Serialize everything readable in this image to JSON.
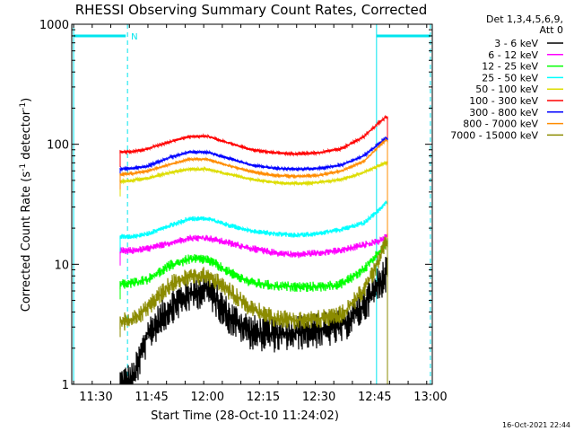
{
  "header": {
    "title": "RHESSI Observing Summary Count Rates, Corrected",
    "detectors": "Det 1,3,4,5,6,9,",
    "attenuator": "Att 0"
  },
  "footer": {
    "timestamp": "16-Oct-2021 22:44"
  },
  "chart_data": {
    "type": "line",
    "title": "RHESSI Observing Summary Count Rates, Corrected",
    "xlabel": "Start Time (28-Oct-10 11:24:02)",
    "ylabel_main": "Corrected Count Rate (s",
    "ylabel_sup1": "-1",
    "ylabel_mid": " detector",
    "ylabel_sup2": "-1",
    "ylabel_end": ")",
    "ylog": true,
    "ylim": [
      1,
      1000
    ],
    "xlim_minutes": [
      -0.5,
      96.5
    ],
    "x_ticks": [
      {
        "label": "11:30",
        "t": 6
      },
      {
        "label": "11:45",
        "t": 21
      },
      {
        "label": "12:00",
        "t": 36
      },
      {
        "label": "12:15",
        "t": 51
      },
      {
        "label": "12:30",
        "t": 66
      },
      {
        "label": "12:45",
        "t": 81
      },
      {
        "label": "13:00",
        "t": 96
      }
    ],
    "y_ticks": [
      {
        "label": "1",
        "v": 1
      },
      {
        "label": "10",
        "v": 10
      },
      {
        "label": "100",
        "v": 100
      },
      {
        "label": "1000",
        "v": 1000
      }
    ],
    "night_marker": {
      "label": "N",
      "t": 14.5,
      "level": 800
    },
    "day_lines": [
      {
        "t": 0,
        "color": "#00e5ee"
      },
      {
        "t": 81.5,
        "color": "#00e5ee"
      }
    ],
    "dashed_lines": [
      {
        "t": 14.5,
        "color": "#00e5ee"
      },
      {
        "t": 96,
        "color": "#00e5ee"
      }
    ],
    "data_start": 12.5,
    "data_end": 84.5,
    "series": [
      {
        "name": "3 - 6 keV",
        "color": "#000000",
        "noise": 0.35,
        "t": [
          12.5,
          16,
          20,
          26,
          31,
          36,
          42,
          48,
          54,
          60,
          66,
          72,
          78,
          82,
          84
        ],
        "v": [
          1.0,
          1.1,
          2.6,
          4.4,
          5.6,
          6.3,
          3.6,
          2.7,
          2.6,
          2.7,
          2.8,
          3.0,
          4.5,
          6.8,
          8.2
        ]
      },
      {
        "name": "6 - 12 keV",
        "color": "#ff00ff",
        "noise": 0.07,
        "t": [
          12.5,
          16,
          20,
          26,
          31,
          36,
          42,
          48,
          54,
          60,
          66,
          72,
          78,
          82,
          84
        ],
        "v": [
          13,
          13,
          13.5,
          15,
          16.5,
          16.5,
          15,
          13.5,
          12.5,
          12,
          12.5,
          13,
          14.5,
          15.5,
          17
        ]
      },
      {
        "name": "12 - 25 keV",
        "color": "#00ff00",
        "noise": 0.1,
        "t": [
          12.5,
          16,
          20,
          26,
          31,
          36,
          42,
          48,
          54,
          60,
          66,
          72,
          78,
          82,
          84
        ],
        "v": [
          6.8,
          7,
          7.5,
          9.8,
          11,
          11,
          8.5,
          7,
          6.6,
          6.5,
          6.5,
          6.8,
          9,
          12.5,
          15
        ]
      },
      {
        "name": "25 - 50 keV",
        "color": "#00ffff",
        "noise": 0.05,
        "t": [
          12.5,
          16,
          20,
          26,
          31,
          36,
          42,
          48,
          54,
          60,
          66,
          72,
          78,
          82,
          84
        ],
        "v": [
          17,
          17,
          18,
          21,
          24,
          24,
          21,
          19,
          18,
          17.5,
          18,
          19.5,
          22,
          28,
          33
        ]
      },
      {
        "name": "50 - 100 keV",
        "color": "#dddd00",
        "noise": 0.03,
        "t": [
          12.5,
          16,
          20,
          26,
          31,
          36,
          42,
          48,
          54,
          60,
          66,
          72,
          78,
          82,
          84
        ],
        "v": [
          49,
          50,
          52,
          58,
          62,
          62,
          56,
          51,
          48,
          47,
          48,
          51,
          58,
          66,
          70
        ]
      },
      {
        "name": "100 - 300 keV",
        "color": "#ff0000",
        "noise": 0.025,
        "t": [
          12.5,
          16,
          20,
          26,
          31,
          36,
          42,
          48,
          54,
          60,
          66,
          72,
          78,
          82,
          84
        ],
        "v": [
          86,
          87,
          92,
          105,
          116,
          117,
          102,
          90,
          85,
          83,
          85,
          92,
          115,
          150,
          168
        ]
      },
      {
        "name": "300 - 800 keV",
        "color": "#0000ff",
        "noise": 0.025,
        "t": [
          12.5,
          16,
          20,
          26,
          31,
          36,
          42,
          48,
          54,
          60,
          66,
          72,
          78,
          82,
          84
        ],
        "v": [
          62,
          63,
          66,
          78,
          86,
          86,
          76,
          67,
          63,
          62,
          63,
          67,
          80,
          100,
          112
        ]
      },
      {
        "name": "800 - 7000 keV",
        "color": "#ff8c00",
        "noise": 0.02,
        "t": [
          12.5,
          16,
          20,
          26,
          31,
          36,
          42,
          48,
          54,
          60,
          66,
          72,
          78,
          82,
          84
        ],
        "v": [
          56,
          57,
          60,
          68,
          75,
          75,
          66,
          59,
          55,
          54,
          55,
          60,
          72,
          95,
          108
        ]
      },
      {
        "name": "7000 - 15000 keV",
        "color": "#8b8b00",
        "noise": 0.18,
        "t": [
          12.5,
          16,
          20,
          26,
          31,
          36,
          42,
          48,
          54,
          60,
          66,
          72,
          78,
          82,
          84
        ],
        "v": [
          3.3,
          3.4,
          4.4,
          6.8,
          7.8,
          8.0,
          6.0,
          4.2,
          3.6,
          3.4,
          3.5,
          3.8,
          6.0,
          10.5,
          15
        ]
      }
    ]
  }
}
